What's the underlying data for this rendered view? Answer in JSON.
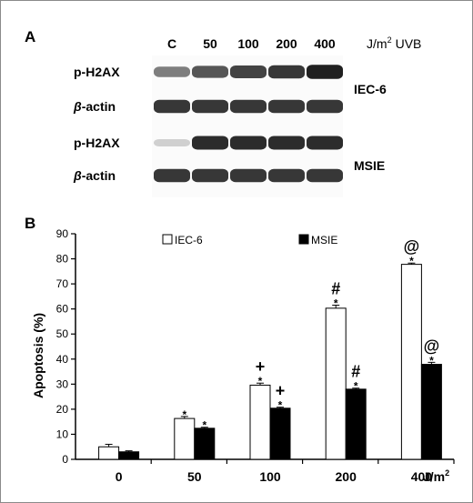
{
  "panel_a": {
    "panel_label": "A",
    "lane_labels": [
      "C",
      "50",
      "100",
      "200",
      "400"
    ],
    "dose_unit": "J/m",
    "dose_unit_exponent": "2",
    "treatment_label": "UVB",
    "cell_lines": [
      {
        "name": "IEC-6",
        "bands": [
          {
            "label": "p-H2AX",
            "intensity": [
              0.55,
              0.72,
              0.8,
              0.85,
              0.95
            ]
          },
          {
            "label": "β-actin",
            "greek": "β",
            "rest": "-actin",
            "intensity": [
              0.85,
              0.85,
              0.85,
              0.85,
              0.85
            ]
          }
        ]
      },
      {
        "name": "MSIE",
        "bands": [
          {
            "label": "p-H2AX",
            "intensity": [
              0.2,
              0.9,
              0.9,
              0.9,
              0.9
            ]
          },
          {
            "label": "β-actin",
            "greek": "β",
            "rest": "-actin",
            "intensity": [
              0.85,
              0.85,
              0.85,
              0.85,
              0.85
            ]
          }
        ]
      }
    ]
  },
  "panel_b": {
    "panel_label": "B"
  },
  "chart_data": {
    "type": "bar",
    "title": "",
    "categories": [
      "0",
      "50",
      "100",
      "200",
      "400"
    ],
    "xlabel": "J/m",
    "xlabel_exponent": "2",
    "ylabel": "Apoptosis (%)",
    "ylim": [
      0,
      90
    ],
    "yticks": [
      "0",
      "10",
      "20",
      "30",
      "40",
      "50",
      "60",
      "70",
      "80",
      "90"
    ],
    "grid": false,
    "legend_position": "top",
    "series": [
      {
        "name": "IEC-6",
        "fill": "#ffffff",
        "values": [
          5.0,
          16.3,
          29.6,
          60.3,
          77.8
        ],
        "errors": [
          1.0,
          0.8,
          0.8,
          1.2,
          0.5
        ],
        "significance": [
          "",
          "*",
          "+\n*",
          "#\n*",
          "@\n*"
        ]
      },
      {
        "name": "MSIE",
        "fill": "#000000",
        "values": [
          3.0,
          12.4,
          20.4,
          28.0,
          37.9
        ],
        "errors": [
          0.4,
          0.4,
          0.4,
          0.4,
          0.8
        ],
        "significance": [
          "",
          "*",
          "+\n*",
          "#\n*",
          "@\n*"
        ]
      }
    ]
  }
}
